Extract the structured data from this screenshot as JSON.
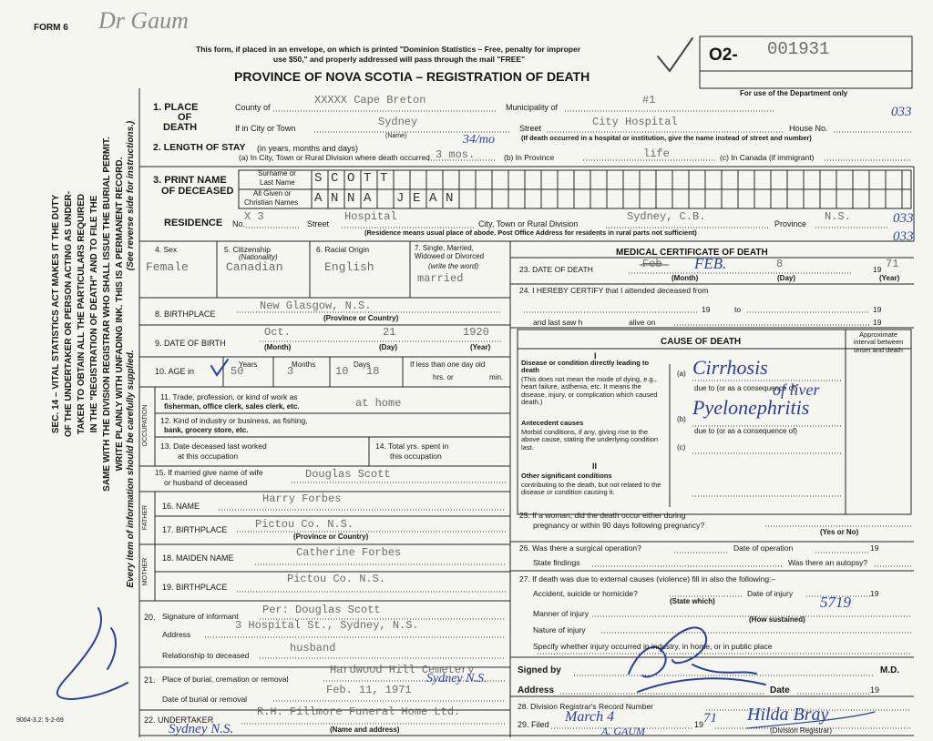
{
  "header": {
    "form_no": "FORM 6",
    "clerk_initials": "Dr Gaum",
    "mail_notice_1": "This form, if placed in an envelope, on which is printed \"Dominion Statistics – Free, penalty for improper",
    "mail_notice_2": "use $50,\" and properly addressed will pass through the mail \"FREE\"",
    "title": "PROVINCE OF NOVA SCOTIA – REGISTRATION OF DEATH",
    "reg_prefix": "O2-",
    "reg_number": "001931",
    "dept_note": "For use of the Department only"
  },
  "sidebar": {
    "statute_lines": [
      "SEC. 14 – VITAL STATISTICS ACT MAKES IT THE DUTY",
      "OF THE UNDERTAKER OR PERSON ACTING AS UNDER-",
      "TAKER TO OBTAIN ALL THE PARTICULARS REQUIRED",
      "IN THE \"REGISTRATION OF DEATH\" AND TO FILE THE",
      "SAME WITH THE DIVISION REGISTRAR WHO SHALL ISSUE THE BURIAL PERMIT.",
      "WRITE PLAINLY WITH UNFADING INK. THIS IS A PERMANENT RECORD."
    ],
    "supply_note": "Every item of information should be carefully supplied.",
    "reverse_note": "(See reverse side for instructions.)",
    "form_code": "9004-3.2: 5-2-69"
  },
  "margin_codes": [
    "033",
    "033",
    "033"
  ],
  "place_of_death": {
    "label_1": "1. PLACE",
    "label_2": "OF",
    "label_3": "DEATH",
    "county_label": "County of",
    "county": "XXXXX Cape Breton",
    "municipality_label": "Municipality of",
    "municipality": "#1",
    "city_label": "If in City or Town",
    "city": "Sydney",
    "city_hint": "(Name)",
    "street_label": "Street",
    "street": "City Hospital",
    "house_label": "House No.",
    "note": "(If death occurred in a hospital or institution, give the name instead of street and number)"
  },
  "length_of_stay": {
    "label": "2. LENGTH OF STAY",
    "hint": "(in years, months and days)",
    "division_label": "(a) In City, Town or Rural Division where death occurred",
    "division": "3 mos.",
    "division_handwritten": "34/mo",
    "province_label": "(b) In Province",
    "province": "life",
    "canada_label": "(c) In Canada (if immigrant)"
  },
  "name": {
    "label_1": "3. PRINT NAME",
    "label_2": "OF DECEASED",
    "surname_label_1": "Surname or",
    "surname_label_2": "Last Name",
    "surname": "SCOTT",
    "given_label_1": "All Given or",
    "given_label_2": "Christian Names",
    "given": "ANNA JEAN"
  },
  "residence": {
    "label": "RESIDENCE",
    "no_label": "No.",
    "no": "X 3",
    "street_label": "Street",
    "street": "Hospital",
    "city_label": "City, Town or Rural Division",
    "city": "Sydney, C.B.",
    "province_label": "Province",
    "province": "N.S.",
    "note": "(Residence means usual place of abode. Post Office Address for residents in rural parts not sufficient)"
  },
  "personal": {
    "sex_label": "4. Sex",
    "sex": "Female",
    "citizenship_label": "5. Citizenship",
    "citizenship_hint": "(Nationality)",
    "citizenship": "Canadian",
    "origin_label": "6. Racial Origin",
    "origin": "English",
    "marital_label": "7. Single, Married, Widowed or Divorced",
    "marital_hint": "(write the word)",
    "marital": "married"
  },
  "birthplace": {
    "label": "8. BIRTHPLACE",
    "value": "New Glasgow, N.S.",
    "hint": "(Province or Country)"
  },
  "birth_date": {
    "label": "9. DATE OF BIRTH",
    "month": "Oct.",
    "day": "21",
    "year": "1920",
    "month_hint": "(Month)",
    "day_hint": "(Day)",
    "year_hint": "(Year)"
  },
  "age": {
    "label": "10. AGE in",
    "years_label": "Years",
    "months_label": "Months",
    "days_label": "Days",
    "years": "50",
    "months": "3",
    "struck": "10",
    "days": "18",
    "infant_label": "If less than one day old",
    "hours_label": "hrs. or",
    "minutes_label": "min."
  },
  "occupation": {
    "side_label": "OCCUPATION",
    "trade_label_1": "11. Trade, profession, or kind of work as",
    "trade_label_2": "fisherman, office clerk, sales clerk, etc.",
    "trade": "at home",
    "industry_label_1": "12. Kind of industry or business, as fishing,",
    "industry_label_2": "bank, grocery store, etc.",
    "last_worked_label_1": "13. Date deceased last worked",
    "last_worked_label_2": "at this occupation",
    "years_label_1": "14. Total yrs. spent in",
    "years_label_2": "this occupation"
  },
  "spouse": {
    "label_1": "15. If married give name of wife",
    "label_2": "or husband of deceased",
    "name": "Douglas Scott"
  },
  "father": {
    "side_label": "FATHER",
    "name_label": "16. NAME",
    "name": "Harry Forbes",
    "birthplace_label": "17. BIRTHPLACE",
    "birthplace": "Pictou Co. N.S.",
    "birthplace_hint": "(Province or Country)"
  },
  "mother": {
    "side_label": "MOTHER",
    "name_label": "18. MAIDEN NAME",
    "name": "Catherine Forbes",
    "birthplace_label": "19. BIRTHPLACE",
    "birthplace": "Pictou Co. N.S."
  },
  "informant": {
    "number": "20.",
    "signature_label": "Signature of informant",
    "signature": "Per: Douglas Scott",
    "address_label": "Address",
    "address": "3 Hospital St., Sydney, N.S.",
    "relationship_label": "Relationship to deceased",
    "relationship": "husband"
  },
  "burial": {
    "number": "21.",
    "place_label": "Place of burial, cremation or removal",
    "place": "Hardwood Hill Cemetery",
    "place_handwritten": "Sydney N.S.",
    "date_label": "Date of burial or removal",
    "date": "Feb. 11, 1971"
  },
  "undertaker": {
    "label": "22. UNDERTAKER",
    "name": "R.H. Fillmore Funeral Home Ltd.",
    "hint": "(Name and address)",
    "handwritten": "Sydney N.S."
  },
  "death_date": {
    "heading": "MEDICAL CERTIFICATE OF DEATH",
    "label": "23. DATE OF DEATH",
    "month_typed": "Feb",
    "month": "FEB.",
    "day": "8",
    "century": "19",
    "year": "71",
    "month_hint": "(Month)",
    "day_hint": "(Day)",
    "year_hint": "(Year)"
  },
  "attendance": {
    "label": "24. I HEREBY CERTIFY that I attended deceased from",
    "from_century": "19",
    "to_label": "to",
    "to_century": "19",
    "last_seen_label": "and last saw h",
    "alive_label": "alive on",
    "alive_century": "19"
  },
  "cause": {
    "heading": "CAUSE OF DEATH",
    "interval_label": "Approximate interval between onset and death",
    "part_1": "I",
    "direct_label": "Disease or condition directly leading to death",
    "direct_hint": "(This does not mean the mode of dying, e.g., heart failure, asthenia, etc. It means the disease, injury, or complication which caused death.)",
    "a_label": "(a)",
    "due_to_1": "due to (or as a consequence of)",
    "b_label": "(b)",
    "due_to_2": "due to (or as a consequence of)",
    "c_label": "(c)",
    "antecedent_label": "Antecedent causes",
    "antecedent_hint": "Morbid conditions, if any, giving rise to the above cause, stating the underlying condition last.",
    "part_2": "II",
    "other_label": "Other significant conditions",
    "other_hint": "contributing to the death, but not related to the disease or condition causing it.",
    "a": "Cirrhosis",
    "a_continued": "of liver",
    "b": "Pyelonephritis"
  },
  "pregnancy": {
    "label_1": "25. If a woman, did the death occur either during",
    "label_2": "pregnancy or within 90 days following pregnancy?",
    "hint": "(Yes or No)"
  },
  "operation": {
    "label": "26. Was there a surgical operation?",
    "date_label": "Date of operation",
    "century": "19",
    "findings_label": "State findings",
    "autopsy_label": "Was there an autopsy?"
  },
  "external": {
    "label": "27. If death was due to external causes (violence) fill in also the following:–",
    "kind_label": "Accident, suicide or homicide?",
    "kind_hint": "(State which)",
    "date_label": "Date of injury",
    "century": "19",
    "how_hint": "(How sustained)",
    "code": "5719",
    "manner_label": "Manner of injury",
    "nature_label": "Nature of injury",
    "place_label": "Specify whether injury occurred in industry, in home, or in public place"
  },
  "signature": {
    "signed_label": "Signed by",
    "md_label": "M.D.",
    "address_label": "Address",
    "date_label": "Date",
    "century": "19"
  },
  "registration": {
    "record_label": "28. Division Registrar's Record Number",
    "filed_label": "29. Filed",
    "filed": "March 4",
    "century": "19",
    "year": "71",
    "registrar": "Hilda Bray",
    "registrar_hint": "(Division Registrar)",
    "stamp": "A. GAUM"
  }
}
